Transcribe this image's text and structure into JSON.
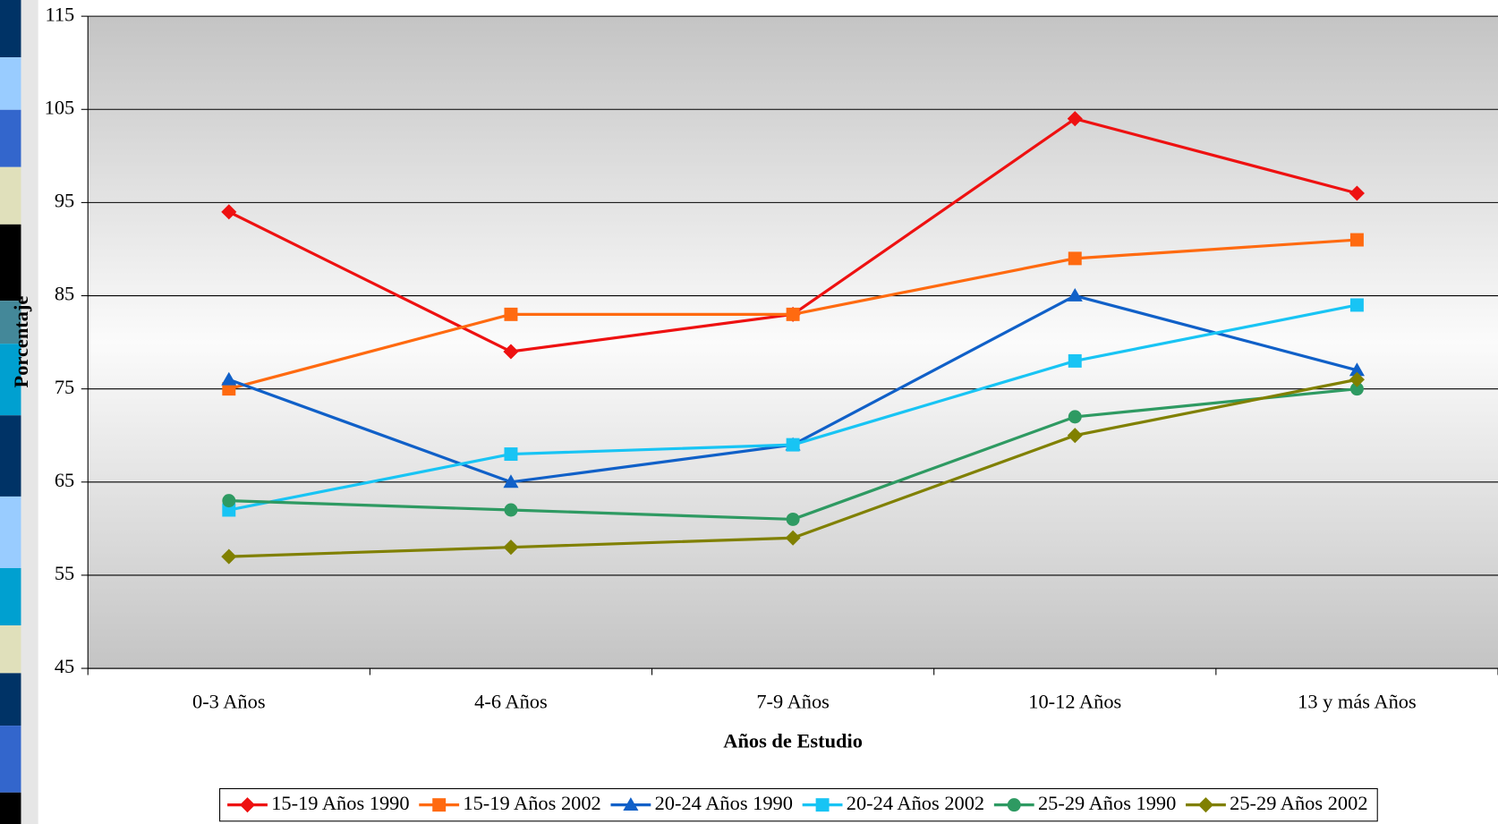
{
  "chart_data": {
    "type": "line",
    "x_label": "Años de Estudio",
    "y_label": "Porcentaje",
    "categories": [
      "0-3 Años",
      "4-6 Años",
      "7-9 Años",
      "10-12 Años",
      "13 y más Años"
    ],
    "series": [
      {
        "name": "15-19 Años 1990",
        "color": "#ee1111",
        "marker": "diamond",
        "values": [
          94,
          79,
          83,
          104,
          96
        ]
      },
      {
        "name": "15-19 Años 2002",
        "color": "#ff6a10",
        "marker": "square",
        "values": [
          75,
          83,
          83,
          89,
          91
        ]
      },
      {
        "name": "20-24 Años 1990",
        "color": "#1060c8",
        "marker": "triangle",
        "values": [
          76,
          65,
          69,
          85,
          77
        ]
      },
      {
        "name": "20-24 Años 2002",
        "color": "#18c4f4",
        "marker": "square",
        "values": [
          62,
          68,
          69,
          78,
          84
        ]
      },
      {
        "name": "25-29 Años 1990",
        "color": "#2e9a62",
        "marker": "circle",
        "values": [
          63,
          62,
          61,
          72,
          75
        ]
      },
      {
        "name": "25-29 Años 2002",
        "color": "#808000",
        "marker": "diamond",
        "values": [
          57,
          58,
          59,
          70,
          76
        ]
      }
    ],
    "ylim": [
      45,
      115
    ],
    "yticks": [
      45,
      55,
      65,
      75,
      85,
      95,
      105,
      115
    ],
    "grid": true,
    "legend": "bottom"
  }
}
